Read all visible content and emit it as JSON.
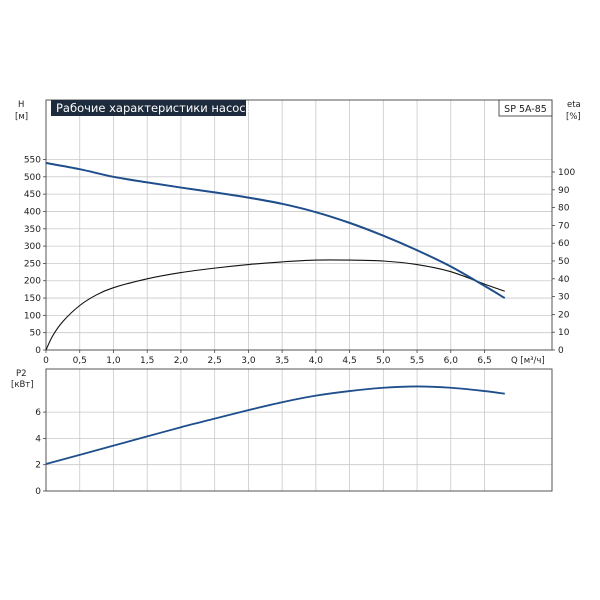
{
  "chart_data": [
    {
      "type": "line",
      "title": "Рабочие характеристики насоса",
      "model_label": "SP 5A-85",
      "xlabel": "Q [м³/ч]",
      "y_left_label": [
        "H",
        "[м]"
      ],
      "y_right_label": [
        "eta",
        "[%]"
      ],
      "xlim": [
        0,
        7.5
      ],
      "ylim_left": [
        0,
        550
      ],
      "ylim_right": [
        0,
        100
      ],
      "x_ticks": [
        "0",
        "0,5",
        "1,0",
        "1,5",
        "2,0",
        "2,5",
        "3,0",
        "3,5",
        "4,0",
        "4,5",
        "5,0",
        "5,5",
        "6,0",
        "6,5"
      ],
      "y_left_ticks": [
        "0",
        "50",
        "100",
        "150",
        "200",
        "250",
        "300",
        "350",
        "400",
        "450",
        "500",
        "550"
      ],
      "y_right_ticks": [
        "0",
        "10",
        "20",
        "30",
        "40",
        "50",
        "60",
        "70",
        "80",
        "90",
        "100"
      ],
      "grid": true,
      "series": [
        {
          "name": "H",
          "axis": "left",
          "color": "#1f4e8c",
          "x": [
            0,
            0.5,
            1.0,
            1.5,
            2.0,
            2.5,
            3.0,
            3.5,
            4.0,
            4.5,
            5.0,
            5.5,
            6.0,
            6.5,
            6.8
          ],
          "values": [
            540,
            522,
            500,
            484,
            469,
            455,
            440,
            422,
            398,
            367,
            330,
            288,
            241,
            185,
            150
          ]
        },
        {
          "name": "eta",
          "axis": "right",
          "color": "#111111",
          "x": [
            0,
            0.1,
            0.25,
            0.5,
            0.75,
            1.0,
            1.5,
            2.0,
            2.5,
            3.0,
            3.5,
            4.0,
            4.5,
            5.0,
            5.5,
            6.0,
            6.5,
            6.8
          ],
          "values": [
            0,
            8,
            16,
            25,
            31,
            35,
            40,
            43.5,
            46,
            48,
            49.5,
            50.5,
            50.5,
            50,
            48,
            44,
            37,
            33
          ]
        }
      ]
    },
    {
      "type": "line",
      "title": "",
      "xlabel": "",
      "y_left_label": [
        "P2",
        "[кВт]"
      ],
      "xlim": [
        0,
        7.5
      ],
      "ylim_left": [
        0,
        8.8
      ],
      "y_left_ticks": [
        "0",
        "2",
        "4",
        "6"
      ],
      "grid": true,
      "series": [
        {
          "name": "P2",
          "axis": "left",
          "color": "#1f4e8c",
          "x": [
            0,
            0.5,
            1.0,
            1.5,
            2.0,
            2.5,
            3.0,
            3.5,
            4.0,
            4.5,
            5.0,
            5.5,
            6.0,
            6.5,
            6.8
          ],
          "values": [
            2.05,
            2.75,
            3.45,
            4.15,
            4.85,
            5.5,
            6.15,
            6.75,
            7.25,
            7.6,
            7.85,
            7.95,
            7.85,
            7.6,
            7.4
          ]
        }
      ]
    }
  ]
}
